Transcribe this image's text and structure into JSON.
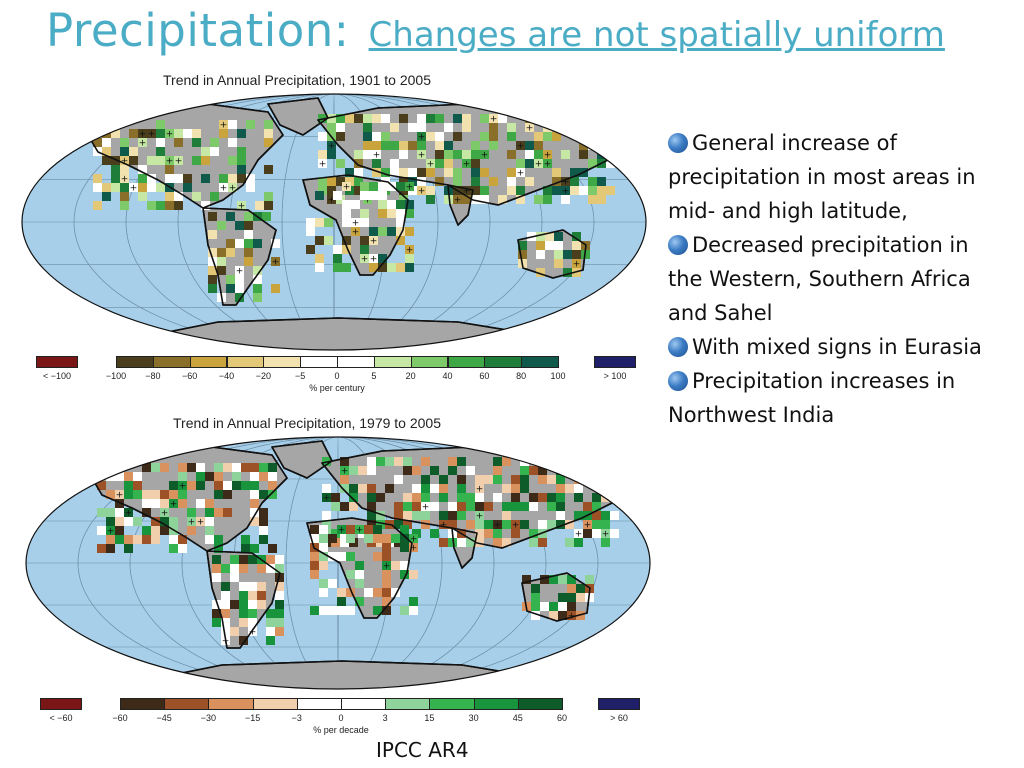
{
  "slide": {
    "title": "Precipitation:",
    "subtitle": "Changes are not spatially uniform",
    "bullets": [
      "General increase of precipitation in most areas in mid- and high latitude,",
      "Decreased precipitation in the Western, Southern Africa and Sahel",
      "With mixed signs in Eurasia",
      "Precipitation increases in Northwest India"
    ],
    "source": "IPCC AR4"
  },
  "maps": [
    {
      "title": "Trend in Annual Precipitation, 1901 to 2005",
      "colorbar": {
        "low_label": "< −100",
        "high_label": "> 100",
        "ticks": [
          "−100",
          "−80",
          "−60",
          "−40",
          "−20",
          "−5",
          "0",
          "5",
          "20",
          "40",
          "60",
          "80",
          "100"
        ],
        "unit": "% per century",
        "colors": [
          "#4a3e1c",
          "#8a6f2a",
          "#c9a43c",
          "#e3c878",
          "#f2e2b0",
          "#ffffff",
          "#ffffff",
          "#c6e8a4",
          "#7ec96a",
          "#3da845",
          "#1f7d3a",
          "#0f5a4a"
        ],
        "low_color": "#7a1616",
        "high_color": "#20206a"
      }
    },
    {
      "title": "Trend in Annual Precipitation, 1979 to 2005",
      "colorbar": {
        "low_label": "< −60",
        "high_label": "> 60",
        "ticks": [
          "−60",
          "−45",
          "−30",
          "−15",
          "−3",
          "0",
          "3",
          "15",
          "30",
          "45",
          "60"
        ],
        "unit": "% per decade",
        "colors": [
          "#3d2a18",
          "#9c5226",
          "#d9925e",
          "#f2cfac",
          "#ffffff",
          "#ffffff",
          "#8ed49a",
          "#35b34f",
          "#17943c",
          "#0d5c2a"
        ],
        "low_color": "#7a1616",
        "high_color": "#20206a"
      }
    }
  ],
  "colors": {
    "title": "#4bacc6",
    "ocean": "#a7cfe9",
    "land_nodata": "#a6a6a6",
    "antarctica": "#a6a6a6"
  }
}
